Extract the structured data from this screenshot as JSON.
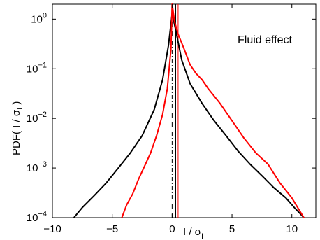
{
  "chart_data": {
    "type": "line",
    "title": "",
    "xlabel": "I / σ",
    "xlabel_sub": "I",
    "ylabel": "PDF( I / σ",
    "ylabel_sub": "I",
    "ylabel_close": " )",
    "annotation": "Fluid effect",
    "xlim": [
      -10,
      12
    ],
    "ylim": [
      0.0001,
      2
    ],
    "yscale": "log",
    "grid": false,
    "x_ticks": [
      {
        "value": -10,
        "label": "−10"
      },
      {
        "value": -5,
        "label": "−5"
      },
      {
        "value": 0,
        "label": "0"
      },
      {
        "value": 5,
        "label": "5"
      },
      {
        "value": 10,
        "label": "10"
      }
    ],
    "y_ticks": [
      {
        "value": 1,
        "base": "10",
        "exp": "0"
      },
      {
        "value": 0.1,
        "base": "10",
        "exp": "−1"
      },
      {
        "value": 0.01,
        "base": "10",
        "exp": "−2"
      },
      {
        "value": 0.001,
        "base": "10",
        "exp": "−3"
      },
      {
        "value": 0.0001,
        "base": "10",
        "exp": "−4"
      }
    ],
    "vertical_lines": [
      {
        "x": 0,
        "color": "#000000",
        "style": "dashdot"
      },
      {
        "x": 0.3,
        "color": "#000000",
        "style": "solid"
      },
      {
        "x": 0.5,
        "color": "#ff0000",
        "style": "solid"
      }
    ],
    "series": [
      {
        "color": "#000000",
        "x": [
          -8.2,
          -7.5,
          -6.5,
          -5.5,
          -4.5,
          -3.5,
          -2.5,
          -1.5,
          -0.8,
          -0.3,
          0,
          0.3,
          0.8,
          1.5,
          2.5,
          3.5,
          4.5,
          5.5,
          6.5,
          7.5,
          8.5,
          9.5,
          10.2,
          11
        ],
        "y": [
          0.0001,
          0.00016,
          0.00028,
          0.0005,
          0.001,
          0.002,
          0.0045,
          0.015,
          0.06,
          0.3,
          1.3,
          0.6,
          0.15,
          0.05,
          0.02,
          0.009,
          0.0045,
          0.0022,
          0.0012,
          0.0007,
          0.0004,
          0.00025,
          0.00016,
          0.0001
        ]
      },
      {
        "color": "#ff0000",
        "x": [
          -4.2,
          -3.8,
          -3.3,
          -2.8,
          -2.3,
          -1.8,
          -1.3,
          -0.8,
          -0.4,
          -0.1,
          0,
          0.2,
          0.5,
          1,
          1.5,
          2,
          2.5,
          3,
          4,
          5,
          6,
          7,
          8,
          9,
          10,
          11
        ],
        "y": [
          0.0001,
          0.00018,
          0.0003,
          0.0006,
          0.0011,
          0.002,
          0.0045,
          0.012,
          0.04,
          0.25,
          2.0,
          0.9,
          0.5,
          0.25,
          0.12,
          0.08,
          0.06,
          0.04,
          0.02,
          0.009,
          0.004,
          0.002,
          0.0012,
          0.0005,
          0.00025,
          0.0001
        ]
      }
    ]
  }
}
